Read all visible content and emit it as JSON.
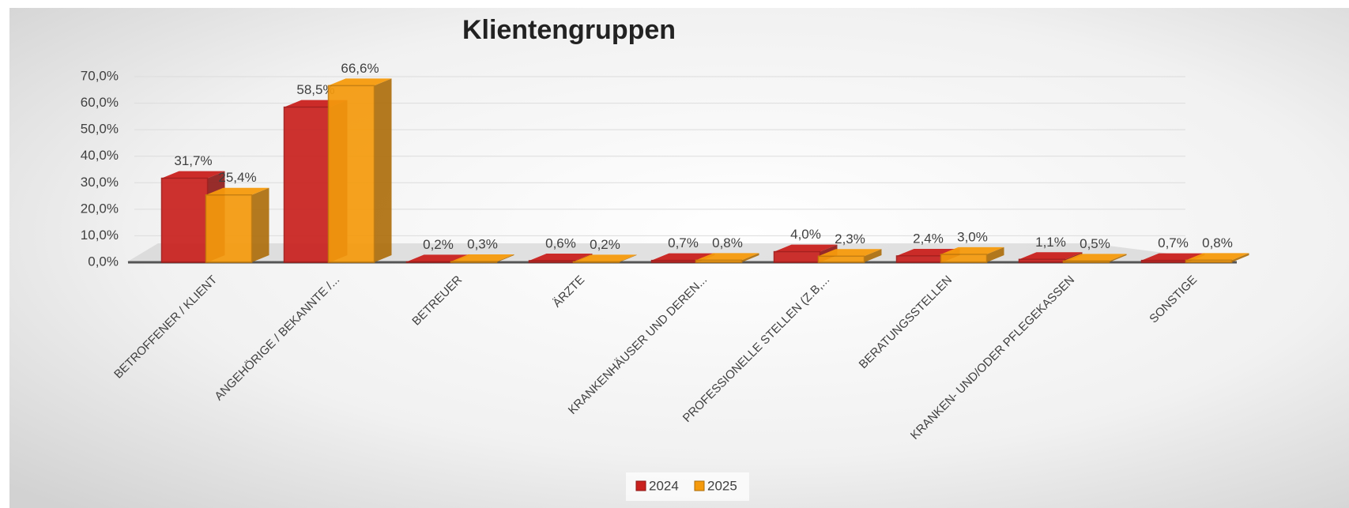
{
  "chart_data": {
    "type": "bar",
    "title": "Klientengruppen",
    "categories": [
      "BETROFFENER / KLIENT",
      "ANGEHÖRIGE / BEKANNTE /...",
      "BETREUER",
      "ÄRZTE",
      "KRANKENHÄUSER UND DEREN...",
      "PROFESSIONELLE STELLEN (Z.B,...",
      "BERATUNGSSTELLEN",
      "KRANKEN- UND/ODER PFLEGEKASSEN",
      "SONSTIGE"
    ],
    "series": [
      {
        "name": "2024",
        "color": "#c9211e",
        "values": [
          31.7,
          58.5,
          0.2,
          0.6,
          0.7,
          4.0,
          2.4,
          1.1,
          0.7
        ],
        "value_labels": [
          "31,7%",
          "58,5%",
          "0,2%",
          "0,6%",
          "0,7%",
          "4,0%",
          "2,4%",
          "1,1%",
          "0,7%"
        ]
      },
      {
        "name": "2025",
        "color": "#f59a0c",
        "values": [
          25.4,
          66.6,
          0.3,
          0.2,
          0.8,
          2.3,
          3.0,
          0.5,
          0.8
        ],
        "value_labels": [
          "25,4%",
          "66,6%",
          "0,3%",
          "0,2%",
          "0,8%",
          "2,3%",
          "3,0%",
          "0,5%",
          "0,8%"
        ]
      }
    ],
    "ylim": [
      0,
      70
    ],
    "yticks": [
      {
        "value": 0,
        "label": "0,0%"
      },
      {
        "value": 10,
        "label": "10,0%"
      },
      {
        "value": 20,
        "label": "20,0%"
      },
      {
        "value": 30,
        "label": "30,0%"
      },
      {
        "value": 40,
        "label": "40,0%"
      },
      {
        "value": 50,
        "label": "50,0%"
      },
      {
        "value": 60,
        "label": "60,0%"
      },
      {
        "value": 70,
        "label": "70,0%"
      }
    ],
    "grid": true,
    "legend": "bottom"
  }
}
